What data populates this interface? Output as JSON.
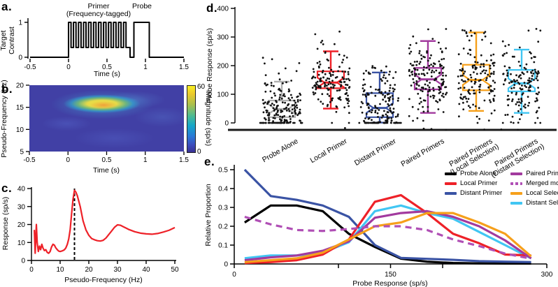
{
  "colors": {
    "red": "#ee2128",
    "blue": "#3a53a4",
    "purple": "#a23a9e",
    "purple_dashed": "#b04fb5",
    "orange": "#f6a01b",
    "cyan": "#41c6f3",
    "gray": "#b0b0b0",
    "black": "#000000",
    "heatmap_base": "#4140a5"
  },
  "chart_data": [
    {
      "id": "a",
      "panel_label": "a.",
      "type": "line",
      "subtype": "stimulus-timecourse",
      "xlabel": "Time (s)",
      "ylabel_lines": [
        "Target",
        "Contrast"
      ],
      "xlim": [
        -0.5,
        1.5
      ],
      "ylim": [
        0,
        1
      ],
      "xticks": [
        "-0.5",
        "0",
        "0.5",
        "1",
        "1.5"
      ],
      "yticks": [
        "1",
        "0"
      ],
      "annotations": {
        "primer_line1": "Primer",
        "primer_line2": "(Frequency-tagged)",
        "probe": "Probe"
      },
      "waveform": {
        "t_min": -0.5,
        "t_max": 1.5,
        "baseline": 0,
        "primer_start": 0,
        "primer_end": 0.78,
        "n_pulses": 12,
        "pulse_high": 1,
        "pulse_low": 0.28,
        "post_primer_low_until": 0.8,
        "probe_start": 0.85,
        "probe_end": 1.05,
        "probe_level": 1
      },
      "line_color": "#000000"
    },
    {
      "id": "b",
      "panel_label": "b.",
      "type": "heatmap",
      "colormap": "parula",
      "xlabel": "Time (s)",
      "ylabel": "Pseudo-Frequency (Hz)",
      "colorbar_label": "Magnitude (sp/s)",
      "colorbar_ticks": [
        "60",
        "0"
      ],
      "xlim": [
        -0.5,
        1.5
      ],
      "ylim": [
        5,
        20
      ],
      "xticks": [
        "-0.5",
        "0",
        "0.5",
        "1",
        "1.5"
      ],
      "yticks": [
        "20",
        "15",
        "10",
        "5"
      ],
      "hotspot": {
        "time_range": [
          0.05,
          0.8
        ],
        "freq_range": [
          13,
          18
        ],
        "peak_time": 0.45,
        "peak_freq": 15.5,
        "peak_magnitude": 60
      },
      "background_magnitude": 5
    },
    {
      "id": "c",
      "panel_label": "c.",
      "type": "line",
      "xlabel": "Pseudo-Frequency (Hz)",
      "ylabel": "Response (sp/s)",
      "xlim": [
        0,
        50
      ],
      "ylim": [
        0,
        40
      ],
      "xticks": [
        "0",
        "10",
        "20",
        "30",
        "40",
        "50"
      ],
      "yticks": [
        "0",
        "10",
        "20",
        "30",
        "40"
      ],
      "vline": {
        "x": 15,
        "style": "dashed",
        "color": "#000000"
      },
      "line_color": "#ee2128",
      "x": [
        1,
        1.3,
        1.7,
        2.0,
        2.4,
        2.8,
        3.2,
        3.6,
        4.0,
        4.5,
        5.0,
        5.5,
        6.0,
        6.5,
        7.0,
        7.5,
        8.0,
        8.5,
        9.0,
        9.5,
        10,
        10.5,
        11,
        11.5,
        12,
        12.5,
        13,
        13.5,
        14,
        14.5,
        15,
        15.5,
        16,
        17,
        18,
        19,
        20,
        21,
        22,
        23,
        24,
        25,
        26,
        27,
        28,
        29,
        30,
        31,
        32,
        33,
        34,
        36,
        38,
        40,
        42,
        44,
        46,
        48,
        50
      ],
      "y": [
        17,
        4,
        20,
        10,
        5,
        8,
        6,
        9,
        7,
        5.5,
        6,
        4.5,
        4,
        5,
        7.5,
        9,
        8.5,
        7,
        6,
        5.2,
        5,
        5.2,
        5.5,
        6,
        7,
        9,
        12,
        17,
        26,
        34,
        39,
        38,
        36,
        30,
        22,
        17,
        14,
        12.2,
        11.5,
        11,
        10.8,
        11.2,
        12.5,
        14.5,
        16.5,
        18.5,
        19.8,
        19.6,
        18.8,
        18,
        17.2,
        16,
        15.2,
        14.8,
        14.6,
        15,
        15.8,
        16.8,
        18.3
      ]
    },
    {
      "id": "d",
      "panel_label": "d.",
      "type": "boxplot-scatter",
      "ylabel": "Probe Response (sp/s)",
      "ylim": [
        0,
        400
      ],
      "yticks": [
        "0",
        "100",
        "200",
        "300",
        "400"
      ],
      "categories": [
        {
          "label": "Probe Alone",
          "label2": "",
          "color": "#b0b0b0",
          "q1": 20,
          "median": 48,
          "q3": 78,
          "whisker_low": 1,
          "whisker_high": 144,
          "dot_max": 228,
          "n_dots": 160,
          "zero_row": 18,
          "below_axis": 0
        },
        {
          "label": "Local Primer",
          "label2": "",
          "color": "#ee2128",
          "q1": 121,
          "median": 141,
          "q3": 180,
          "whisker_low": 50,
          "whisker_high": 250,
          "dot_max": 330,
          "n_dots": 140,
          "zero_row": 1,
          "below_axis": 1
        },
        {
          "label": "Distant Primer",
          "label2": "",
          "color": "#3a53a4",
          "q1": 20,
          "median": 52,
          "q3": 104,
          "whisker_low": 1,
          "whisker_high": 176,
          "dot_max": 205,
          "n_dots": 150,
          "zero_row": 16,
          "below_axis": 0
        },
        {
          "label": "Paired Primers",
          "label2": "",
          "color": "#a23a9e",
          "q1": 117,
          "median": 152,
          "q3": 192,
          "whisker_low": 35,
          "whisker_high": 286,
          "dot_max": 332,
          "n_dots": 150,
          "zero_row": 0,
          "below_axis": 3
        },
        {
          "label": "Paired Primers",
          "label2": "(Local Selection)",
          "color": "#f6a01b",
          "q1": 114,
          "median": 150,
          "q3": 203,
          "whisker_low": 42,
          "whisker_high": 316,
          "dot_max": 330,
          "n_dots": 140,
          "zero_row": 0,
          "below_axis": 1
        },
        {
          "label": "Paired Primers",
          "label2": "(Distant Selection)",
          "color": "#41c6f3",
          "q1": 110,
          "median": 138,
          "q3": 185,
          "whisker_low": 35,
          "whisker_high": 256,
          "dot_max": 330,
          "n_dots": 140,
          "zero_row": 0,
          "below_axis": 2
        }
      ]
    },
    {
      "id": "e",
      "panel_label": "e.",
      "type": "line-multi",
      "xlabel": "Probe Response (sp/s)",
      "ylabel": "Relative Proportion",
      "xlim": [
        0,
        300
      ],
      "ylim": [
        0,
        0.5
      ],
      "xticks": [
        {
          "v": 0,
          "label": "0"
        },
        {
          "v": 100,
          "label": ""
        },
        {
          "v": 150,
          "label": "150"
        },
        {
          "v": 200,
          "label": ""
        },
        {
          "v": 300,
          "label": "300"
        }
      ],
      "yticks": [
        "0",
        "0.1",
        "0.2",
        "0.3",
        "0.4",
        "0.5"
      ],
      "x": [
        10,
        35,
        60,
        85,
        110,
        135,
        160,
        185,
        210,
        235,
        260,
        285
      ],
      "series": [
        {
          "name": "Probe Alone",
          "color": "#000000",
          "dashed": false,
          "legend_col": 1,
          "values": [
            0.22,
            0.31,
            0.31,
            0.28,
            0.16,
            0.09,
            0.028,
            0.012,
            0.005,
            0.003,
            0.002,
            0.002
          ]
        },
        {
          "name": "Local Primer",
          "color": "#ee2128",
          "dashed": false,
          "legend_col": 1,
          "values": [
            0.005,
            0.01,
            0.02,
            0.05,
            0.13,
            0.33,
            0.365,
            0.27,
            0.16,
            0.11,
            0.05,
            0.045
          ]
        },
        {
          "name": "Distant Primer",
          "color": "#3a53a4",
          "dashed": false,
          "legend_col": 1,
          "values": [
            0.5,
            0.36,
            0.34,
            0.31,
            0.25,
            0.1,
            0.032,
            0.027,
            0.022,
            0.015,
            0.012,
            0.01
          ]
        },
        {
          "name": "Paired Primers",
          "color": "#a23a9e",
          "dashed": false,
          "legend_col": 2,
          "values": [
            0.02,
            0.035,
            0.045,
            0.07,
            0.12,
            0.245,
            0.27,
            0.28,
            0.25,
            0.2,
            0.125,
            0.03
          ]
        },
        {
          "name": "Merged model",
          "color": "#b04fb5",
          "dashed": true,
          "legend_col": 2,
          "values": [
            0.25,
            0.21,
            0.18,
            0.175,
            0.185,
            0.2,
            0.2,
            0.18,
            0.13,
            0.095,
            0.055,
            0.028
          ]
        },
        {
          "name": "Local Selection",
          "color": "#f6a01b",
          "dashed": false,
          "legend_col": 2,
          "values": [
            0.01,
            0.02,
            0.03,
            0.06,
            0.13,
            0.2,
            0.22,
            0.27,
            0.27,
            0.22,
            0.16,
            0.04
          ]
        },
        {
          "name": "Distant Selection",
          "color": "#41c6f3",
          "dashed": false,
          "legend_col": 2,
          "values": [
            0.03,
            0.045,
            0.045,
            0.06,
            0.115,
            0.28,
            0.31,
            0.27,
            0.24,
            0.17,
            0.1,
            0.03
          ]
        }
      ]
    }
  ]
}
